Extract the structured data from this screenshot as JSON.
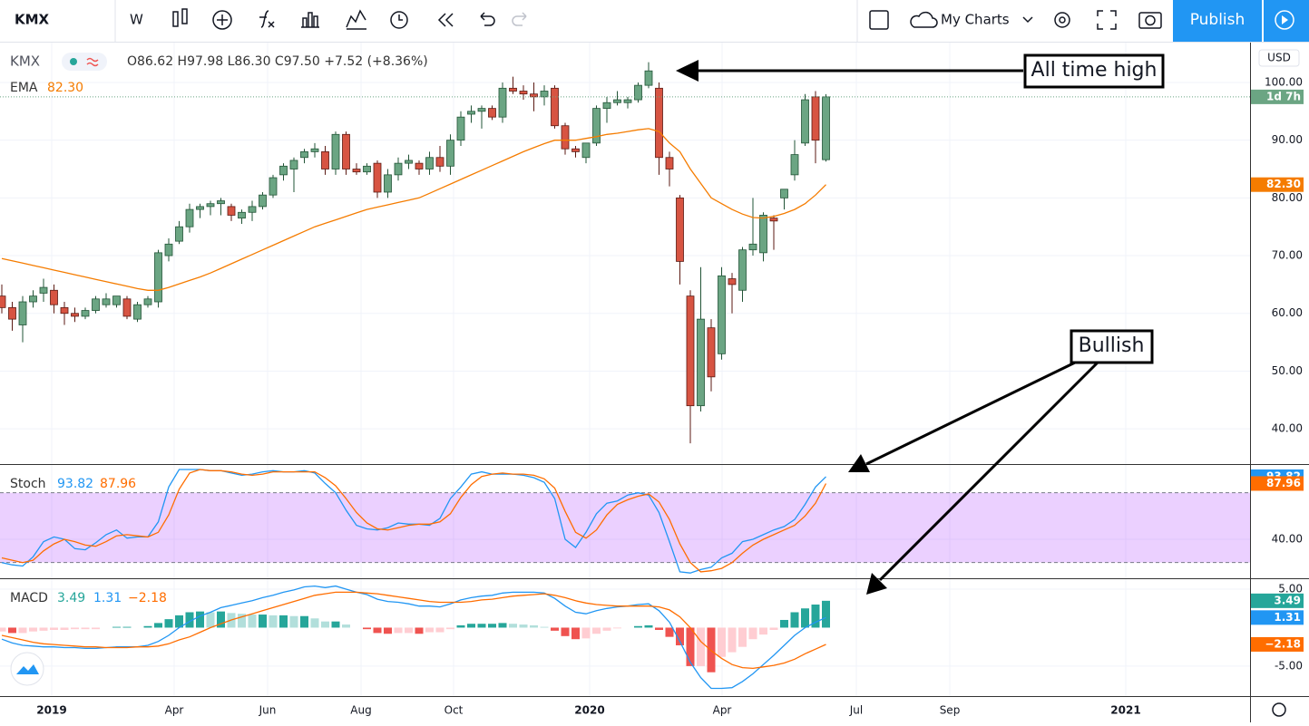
{
  "toolbar": {
    "symbol": "KMX",
    "interval": "W",
    "layout": "My Charts",
    "publish": "Publish"
  },
  "chart_data": [
    {
      "type": "candlestick",
      "symbol": "KMX",
      "legend": "O86.62 H97.98 L86.30 C97.50 +7.52 (+8.36%)",
      "currency": "USD",
      "countdown": "1d 7h",
      "up_color": "#6ba583",
      "down_color": "#d75442",
      "grid": true,
      "open": [
        63,
        61,
        58,
        62,
        63.5,
        64,
        61,
        60,
        59.5,
        60.5,
        61.5,
        61.5,
        62.5,
        59,
        61.5,
        62,
        70,
        72.5,
        75,
        78,
        78.5,
        79,
        78.5,
        76.5,
        77.5,
        78.5,
        80.5,
        84,
        85,
        87,
        88,
        88,
        85,
        91,
        85,
        84.5,
        86,
        81,
        84,
        86,
        86,
        85,
        87,
        85.5,
        90,
        94.5,
        95,
        95.5,
        94,
        99,
        98.5,
        98,
        97.5,
        99,
        92.5,
        88.5,
        87,
        89.5,
        95.5,
        96.5,
        96.5,
        97,
        99.5,
        99,
        87,
        80,
        63,
        44,
        57.5,
        53,
        66,
        64,
        71,
        70.5,
        76.5,
        80,
        84,
        89.5,
        97.5,
        86.62
      ],
      "high": [
        65,
        62,
        63,
        64,
        66,
        65,
        62,
        61,
        61,
        63,
        63.5,
        63,
        63,
        62,
        63,
        71,
        73,
        76,
        79,
        79,
        79.5,
        80,
        79,
        78,
        79.5,
        81,
        84,
        86,
        87,
        88.5,
        89.5,
        89,
        91.5,
        91.5,
        86,
        86,
        86.5,
        85,
        87,
        87.5,
        86.5,
        88,
        89,
        91,
        95,
        96,
        96,
        96,
        100,
        101,
        99.5,
        100,
        99.5,
        99.5,
        93,
        89,
        89.5,
        96,
        97.5,
        98.5,
        97.5,
        100,
        103.5,
        100,
        88,
        80.5,
        64,
        68,
        59,
        68,
        67,
        71.5,
        80,
        77.5,
        77,
        81.5,
        90,
        98,
        98.5,
        97.98
      ],
      "low": [
        60,
        57,
        55,
        61,
        62,
        60,
        58,
        58.5,
        59,
        60,
        61,
        61,
        59,
        58.5,
        61,
        61,
        69,
        72,
        74,
        76.5,
        77,
        77,
        76,
        75.5,
        76,
        78,
        80,
        83,
        81,
        86,
        87,
        84,
        84,
        84,
        84,
        84,
        80,
        80,
        83,
        85,
        84,
        84,
        84.5,
        84,
        89,
        93,
        92,
        93.5,
        93,
        98,
        97,
        95,
        96,
        92,
        87.5,
        87,
        86,
        89,
        93,
        96,
        95.5,
        96.5,
        99,
        84,
        82,
        65,
        37.5,
        43,
        46.5,
        52,
        60,
        62,
        70,
        69,
        71,
        78,
        83,
        89,
        86,
        86.3
      ],
      "close": [
        61,
        59,
        62,
        63,
        64.5,
        61.5,
        60,
        59.5,
        60.5,
        62.5,
        62.5,
        63,
        59.5,
        61.5,
        62.5,
        70.5,
        72,
        75,
        78,
        78.5,
        79,
        79.5,
        77,
        77.5,
        78.5,
        80.5,
        83.5,
        85.5,
        86.5,
        88,
        88.5,
        85,
        91,
        85,
        84.5,
        85.5,
        81,
        84,
        86,
        86.5,
        85,
        87,
        85.5,
        90,
        94,
        95,
        95.5,
        94,
        99,
        98.5,
        98,
        97.5,
        98.5,
        92.5,
        88.5,
        88,
        89.5,
        95.5,
        96.5,
        97,
        97,
        99.5,
        102,
        87,
        85,
        69,
        44,
        59,
        49,
        66.5,
        65,
        71,
        72,
        77,
        76,
        81.5,
        87.5,
        97,
        90,
        97.5
      ],
      "series": [
        {
          "name": "EMA",
          "color": "#f57c00",
          "last_label": "82.30",
          "values": [
            69.5,
            69.1,
            68.7,
            68.3,
            67.9,
            67.5,
            67.1,
            66.7,
            66.3,
            65.9,
            65.5,
            65.1,
            64.7,
            64.3,
            64.0,
            64.0,
            64.5,
            65.1,
            65.7,
            66.3,
            67.0,
            67.8,
            68.6,
            69.4,
            70.2,
            71.0,
            71.8,
            72.6,
            73.4,
            74.2,
            75.0,
            75.6,
            76.2,
            76.8,
            77.4,
            78.0,
            78.4,
            78.8,
            79.2,
            79.6,
            80.0,
            80.8,
            81.6,
            82.4,
            83.2,
            84.0,
            84.8,
            85.6,
            86.4,
            87.2,
            88.0,
            88.7,
            89.4,
            90.0,
            90.0,
            90.0,
            90.3,
            90.6,
            91.0,
            91.2,
            91.5,
            91.8,
            92.0,
            91.5,
            89.5,
            88.0,
            85.0,
            82.5,
            80.0,
            79.0,
            78.0,
            77.2,
            76.6,
            76.5,
            76.8,
            77.3,
            78.0,
            79.0,
            80.5,
            82.3
          ]
        }
      ],
      "ylim": [
        33.9,
        106.9
      ],
      "yticks": [
        {
          "value": 40,
          "label": "40.00"
        },
        {
          "value": 50,
          "label": "50.00"
        },
        {
          "value": 60,
          "label": "60.00"
        },
        {
          "value": 70,
          "label": "70.00"
        },
        {
          "value": 80,
          "label": "80.00"
        },
        {
          "value": 90,
          "label": "90.00"
        },
        {
          "value": 100,
          "label": "100.00"
        }
      ],
      "x_labels": [
        "2019",
        "Apr",
        "Jun",
        "Aug",
        "Oct",
        "2020",
        "Apr",
        "Jul",
        "Sep",
        "2021"
      ],
      "annotations": [
        "All time high",
        "Bullish"
      ]
    },
    {
      "type": "line",
      "title": "Stoch",
      "grid": true,
      "bands": [
        20,
        80
      ],
      "band_color": "#9915ff",
      "series": [
        {
          "color": "#2196f3",
          "last_label": "93.82",
          "values": [
            20,
            18,
            17,
            25,
            38,
            42,
            40,
            32,
            31,
            37,
            44,
            48,
            41,
            42,
            42,
            55,
            85,
            100,
            100,
            100,
            99,
            99,
            97,
            95,
            96,
            98,
            99,
            98,
            98,
            99,
            97,
            88,
            80,
            65,
            52,
            49,
            48,
            50,
            54,
            53,
            53,
            52,
            58,
            75,
            85,
            96,
            98,
            96,
            96,
            96,
            95,
            93,
            89,
            75,
            40,
            33,
            46,
            62,
            71,
            73,
            78,
            80,
            78,
            63,
            38,
            12,
            11,
            14,
            16,
            24,
            28,
            38,
            40,
            44,
            48,
            51,
            57,
            70,
            85,
            93.82
          ]
        },
        {
          "color": "#ff6d00",
          "last_label": "87.96",
          "values": [
            24,
            22,
            20,
            22,
            30,
            36,
            40,
            38,
            35,
            34,
            38,
            43,
            44,
            43,
            42,
            46,
            61,
            83,
            97,
            100,
            99,
            99,
            98,
            96,
            95,
            96,
            98,
            98,
            98,
            98,
            98,
            93,
            86,
            75,
            63,
            54,
            49,
            48,
            50,
            52,
            53,
            53,
            55,
            62,
            76,
            87,
            94,
            96,
            97,
            96,
            96,
            95,
            92,
            84,
            64,
            46,
            41,
            48,
            61,
            70,
            74,
            77,
            79,
            72,
            57,
            36,
            20,
            12,
            13,
            15,
            20,
            28,
            35,
            40,
            44,
            48,
            52,
            60,
            71,
            87.96
          ]
        }
      ],
      "ylim": [
        6.5,
        103.9
      ],
      "yticks": [
        {
          "value": 40,
          "label": "40.00"
        }
      ]
    },
    {
      "type": "macd",
      "title": "MACD",
      "grid": true,
      "series": [
        {
          "colors": [
            "#26a69a",
            "#b2dfdb",
            "#ffcdd2",
            "#ef5350"
          ],
          "last_label": "3.49",
          "values": [
            -0.5,
            -0.7,
            -0.7,
            -0.5,
            -0.4,
            -0.3,
            -0.3,
            -0.2,
            -0.2,
            -0.2,
            0,
            0.1,
            0.1,
            0,
            0.2,
            0.6,
            1.1,
            1.6,
            2.0,
            2.1,
            2.0,
            2.1,
            1.9,
            1.8,
            1.7,
            1.7,
            1.6,
            1.6,
            1.5,
            1.5,
            1.2,
            0.8,
            0.8,
            0.4,
            0,
            -0.2,
            -0.7,
            -0.8,
            -0.7,
            -0.7,
            -0.8,
            -0.6,
            -0.6,
            -0.2,
            0.3,
            0.5,
            0.5,
            0.5,
            0.6,
            0.5,
            0.4,
            0.3,
            0.1,
            -0.4,
            -1.1,
            -1.5,
            -1.4,
            -0.8,
            -0.4,
            -0.1,
            0,
            0.2,
            0.3,
            -0.3,
            -1.2,
            -2.3,
            -5.0,
            -5.0,
            -5.8,
            -3.8,
            -3.2,
            -2.5,
            -1.5,
            -0.9,
            -0.3,
            1.0,
            2.0,
            2.5,
            3.0,
            3.49
          ]
        },
        {
          "color": "#2196f3",
          "last_label": "1.31",
          "values": [
            -1.5,
            -2,
            -2.3,
            -2.4,
            -2.5,
            -2.5,
            -2.6,
            -2.6,
            -2.7,
            -2.7,
            -2.6,
            -2.5,
            -2.5,
            -2.5,
            -2.3,
            -1.8,
            -1,
            0,
            0.8,
            1.5,
            2,
            2.6,
            2.9,
            3.2,
            3.5,
            3.9,
            4.2,
            4.6,
            4.9,
            5.3,
            5.4,
            5.2,
            5.4,
            5,
            4.6,
            4.3,
            3.7,
            3.4,
            3.3,
            3.1,
            2.8,
            2.8,
            2.7,
            3.1,
            3.6,
            3.9,
            4.1,
            4.2,
            4.5,
            4.6,
            4.6,
            4.6,
            4.5,
            3.8,
            2.8,
            2,
            1.8,
            2.2,
            2.5,
            2.7,
            2.8,
            3,
            3.1,
            2.2,
            0.7,
            -1.8,
            -4.5,
            -6.5,
            -7.9,
            -7.9,
            -7.8,
            -7,
            -6,
            -4.8,
            -3.6,
            -2.3,
            -1,
            0,
            0.7,
            1.31
          ]
        },
        {
          "color": "#ff6d00",
          "last_label": "−2.18",
          "values": [
            -1.0,
            -1.3,
            -1.6,
            -1.9,
            -2.1,
            -2.2,
            -2.3,
            -2.4,
            -2.5,
            -2.5,
            -2.6,
            -2.6,
            -2.6,
            -2.5,
            -2.5,
            -2.4,
            -2.1,
            -1.6,
            -1.2,
            -0.6,
            0,
            0.5,
            1.0,
            1.4,
            1.8,
            2.2,
            2.6,
            3.0,
            3.4,
            3.8,
            4.2,
            4.4,
            4.6,
            4.6,
            4.6,
            4.5,
            4.4,
            4.2,
            4.0,
            3.8,
            3.6,
            3.4,
            3.3,
            3.3,
            3.3,
            3.4,
            3.6,
            3.7,
            3.9,
            4.1,
            4.2,
            4.3,
            4.4,
            4.2,
            3.9,
            3.5,
            3.2,
            3.0,
            2.9,
            2.8,
            2.8,
            2.8,
            2.8,
            2.7,
            2.3,
            1.4,
            0,
            -1.8,
            -3.0,
            -4.0,
            -4.8,
            -5.2,
            -5.3,
            -5.1,
            -4.9,
            -4.6,
            -4.1,
            -3.4,
            -2.8,
            -2.18
          ]
        }
      ],
      "ylim": [
        -8.9,
        6.3
      ],
      "yticks": [
        {
          "value": 5,
          "label": "5.00"
        },
        {
          "value": -5,
          "label": "-5.00"
        }
      ]
    }
  ]
}
